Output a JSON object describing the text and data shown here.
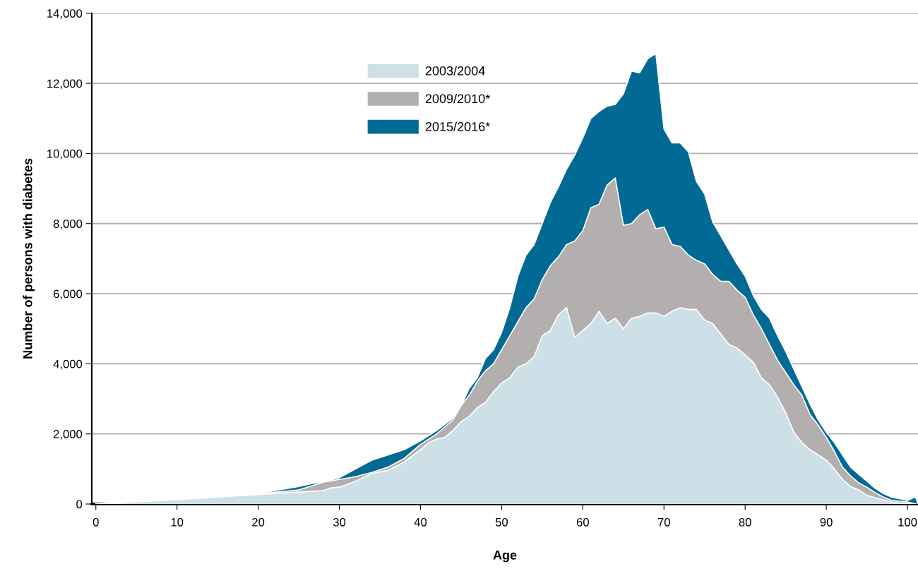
{
  "chart_data": {
    "type": "area",
    "xlabel": "Age",
    "ylabel": "Number of persons with diabetes",
    "xlim": [
      -0.5,
      101.3
    ],
    "xticks": [
      0,
      10,
      20,
      30,
      40,
      50,
      60,
      70,
      80,
      90,
      100
    ],
    "ylim": [
      0,
      14000
    ],
    "yticks": [
      {
        "value": 0,
        "label": "0"
      },
      {
        "value": 2000,
        "label": "2,000"
      },
      {
        "value": 4000,
        "label": "4,000"
      },
      {
        "value": 6000,
        "label": "6,000"
      },
      {
        "value": 8000,
        "label": "8,000"
      },
      {
        "value": 10000,
        "label": "10,000"
      },
      {
        "value": 12000,
        "label": "12,000"
      },
      {
        "value": 14000,
        "label": "14,000"
      }
    ],
    "grid": "y",
    "legend": "top",
    "series": [
      {
        "name": "2003/2004",
        "color": "#cde0e8",
        "x": [
          0,
          2,
          5,
          10,
          15,
          20,
          25,
          28,
          29,
          30,
          32,
          34,
          36,
          38,
          40,
          41,
          42,
          43,
          44,
          45,
          46,
          47,
          48,
          49,
          50,
          51,
          52,
          53,
          54,
          55,
          56,
          57,
          58,
          59,
          60,
          61,
          62,
          63,
          64,
          65,
          66,
          67,
          68,
          69,
          70,
          71,
          72,
          73,
          74,
          75,
          76,
          77,
          78,
          79,
          80,
          81,
          82,
          83,
          84,
          85,
          86,
          87,
          88,
          89,
          90,
          91,
          92,
          93,
          94,
          95,
          96,
          97,
          98,
          99,
          100,
          101
        ],
        "values": [
          0,
          10,
          60,
          120,
          200,
          270,
          340,
          380,
          460,
          480,
          650,
          870,
          960,
          1200,
          1550,
          1750,
          1850,
          1900,
          2100,
          2350,
          2500,
          2750,
          2900,
          3200,
          3450,
          3600,
          3900,
          4000,
          4200,
          4800,
          4950,
          5400,
          5600,
          4750,
          4950,
          5150,
          5500,
          5150,
          5300,
          5000,
          5300,
          5350,
          5450,
          5450,
          5350,
          5500,
          5600,
          5550,
          5550,
          5250,
          5150,
          4850,
          4550,
          4450,
          4250,
          4050,
          3600,
          3400,
          3050,
          2600,
          2050,
          1750,
          1550,
          1400,
          1250,
          1000,
          700,
          500,
          400,
          250,
          180,
          120,
          60,
          30,
          20,
          0
        ]
      },
      {
        "name": "2009/2010*",
        "color": "#b2afae",
        "x": [
          0,
          5,
          10,
          15,
          20,
          25,
          28,
          30,
          32,
          34,
          36,
          38,
          40,
          42,
          44,
          45,
          46,
          47,
          48,
          49,
          50,
          51,
          52,
          53,
          54,
          55,
          56,
          57,
          58,
          59,
          60,
          61,
          62,
          63,
          64,
          65,
          66,
          67,
          68,
          69,
          70,
          71,
          72,
          73,
          74,
          75,
          76,
          77,
          78,
          79,
          80,
          81,
          82,
          83,
          84,
          85,
          86,
          87,
          88,
          89,
          90,
          91,
          92,
          93,
          94,
          95,
          96,
          97,
          98,
          99,
          100,
          101
        ],
        "values": [
          0,
          60,
          130,
          220,
          290,
          400,
          620,
          700,
          780,
          900,
          1050,
          1300,
          1700,
          2000,
          2400,
          2800,
          3100,
          3500,
          3800,
          4000,
          4400,
          4800,
          5200,
          5600,
          5850,
          6400,
          6800,
          7050,
          7400,
          7500,
          7800,
          8450,
          8550,
          9100,
          9300,
          7950,
          8000,
          8250,
          8400,
          7850,
          7900,
          7400,
          7350,
          7100,
          6950,
          6850,
          6550,
          6350,
          6350,
          6100,
          5900,
          5400,
          5000,
          4550,
          4100,
          3750,
          3400,
          3100,
          2550,
          2250,
          1900,
          1500,
          1050,
          800,
          600,
          480,
          330,
          200,
          110,
          80,
          60,
          0
        ]
      },
      {
        "name": "2015/2016*",
        "color": "#006a94",
        "x": [
          0,
          5,
          10,
          15,
          20,
          25,
          27,
          28,
          30,
          32,
          34,
          36,
          38,
          40,
          42,
          44,
          45,
          46,
          47,
          48,
          49,
          50,
          51,
          52,
          53,
          54,
          55,
          56,
          57,
          58,
          59,
          60,
          61,
          62,
          63,
          64,
          65,
          66,
          67,
          68,
          69,
          70,
          71,
          72,
          73,
          74,
          75,
          76,
          77,
          78,
          79,
          80,
          81,
          82,
          83,
          84,
          85,
          86,
          87,
          88,
          89,
          90,
          91,
          92,
          93,
          94,
          95,
          96,
          97,
          98,
          99,
          100,
          101,
          101.3
        ],
        "values": [
          0,
          60,
          130,
          220,
          300,
          500,
          600,
          620,
          750,
          1000,
          1250,
          1400,
          1550,
          1800,
          2100,
          2450,
          2800,
          3300,
          3600,
          4150,
          4400,
          4900,
          5600,
          6500,
          7100,
          7400,
          8000,
          8600,
          9050,
          9550,
          9950,
          10450,
          11000,
          11200,
          11350,
          11400,
          11700,
          12350,
          12300,
          12700,
          12850,
          10700,
          10300,
          10300,
          10050,
          9200,
          8850,
          8050,
          7650,
          7250,
          6850,
          6500,
          5950,
          5550,
          5300,
          4800,
          4350,
          3850,
          3350,
          2850,
          2400,
          2050,
          1750,
          1400,
          1050,
          850,
          650,
          450,
          300,
          200,
          150,
          100,
          200,
          0
        ]
      }
    ]
  }
}
